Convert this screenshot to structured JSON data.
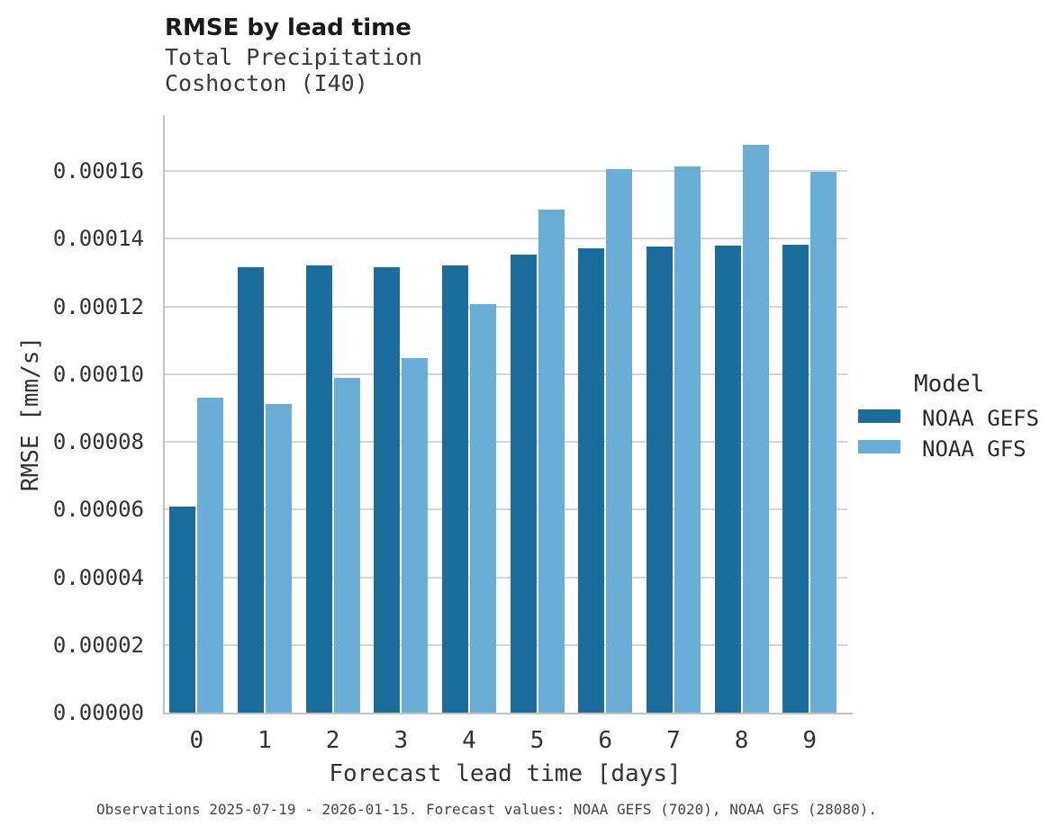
{
  "header": {
    "title": "RMSE by lead time",
    "subtitle_lines": [
      "Total Precipitation",
      "Coshocton (I40)"
    ]
  },
  "chart_data": {
    "type": "bar",
    "title": "RMSE by lead time",
    "subtitle": "Total Precipitation Coshocton (I40)",
    "categories": [
      "0",
      "1",
      "2",
      "3",
      "4",
      "5",
      "6",
      "7",
      "8",
      "9"
    ],
    "series": [
      {
        "name": "NOAA GEFS",
        "color": "#1b6d9e",
        "values": [
          6.08e-05,
          0.0001317,
          0.000132,
          0.0001316,
          0.000132,
          0.0001353,
          0.0001371,
          0.0001378,
          0.0001379,
          0.0001381
        ]
      },
      {
        "name": "NOAA GFS",
        "color": "#69aed6",
        "values": [
          9.3e-05,
          9.12e-05,
          9.9e-05,
          0.0001048,
          0.0001208,
          0.0001487,
          0.0001605,
          0.0001613,
          0.0001676,
          0.0001597
        ]
      }
    ],
    "xlabel": "Forecast lead time [days]",
    "ylabel": "RMSE [mm/s]",
    "ylim": [
      0,
      0.0001765
    ],
    "ytick_step": 2e-05,
    "ytick_labels": [
      "0.00000",
      "0.00002",
      "0.00004",
      "0.00006",
      "0.00008",
      "0.00010",
      "0.00012",
      "0.00014",
      "0.00016"
    ],
    "xtick_labels": [
      "0",
      "1",
      "2",
      "3",
      "4",
      "5",
      "6",
      "7",
      "8",
      "9"
    ],
    "grid": "horizontal",
    "legend": {
      "title": "Model",
      "position": "right"
    }
  },
  "caption": "Observations 2025-07-19 - 2026-01-15. Forecast values: NOAA GEFS (7020), NOAA GFS (28080)."
}
